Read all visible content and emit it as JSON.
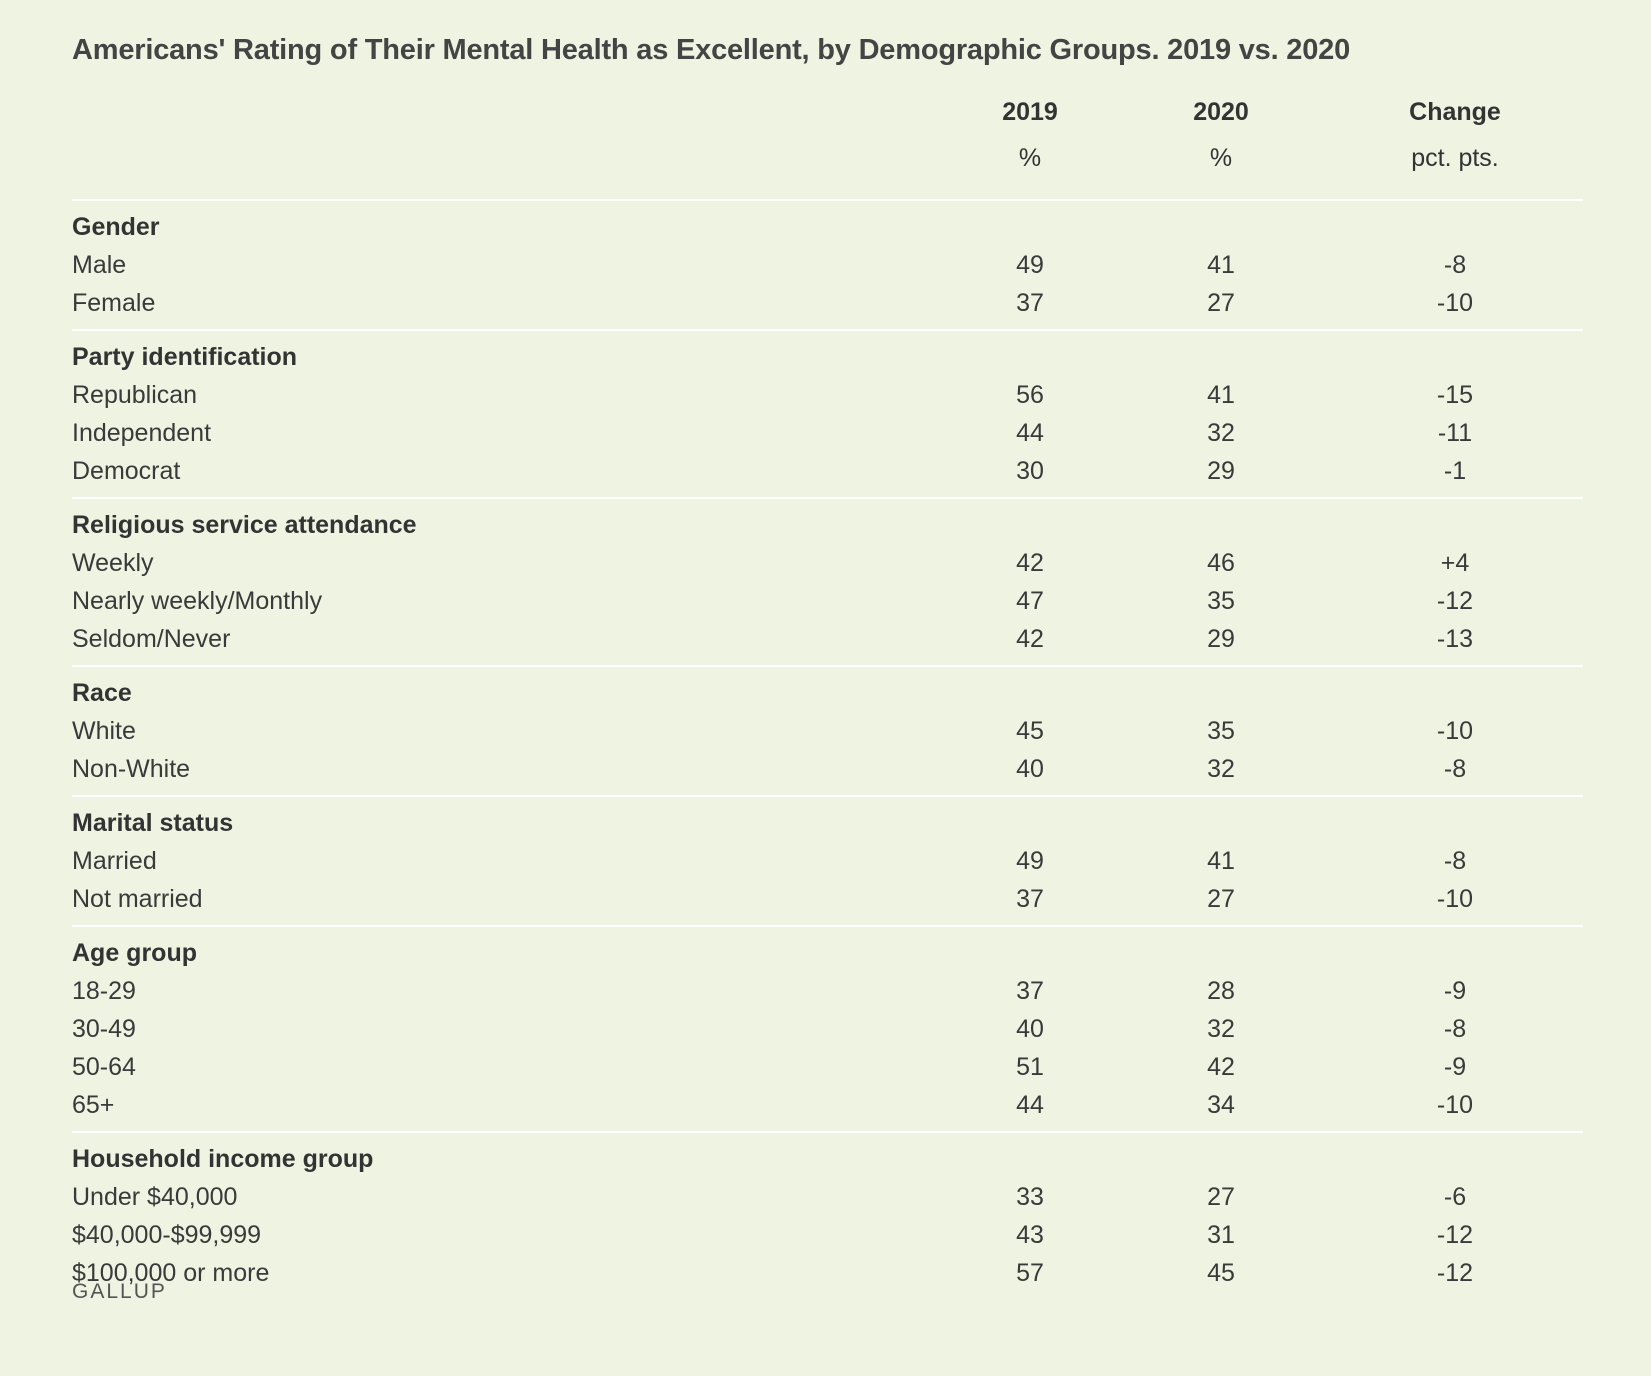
{
  "chart_data": {
    "type": "table",
    "title": "Americans' Rating of Their Mental Health as Excellent, by Demographic Groups. 2019 vs. 2020",
    "columns": [
      {
        "label": "2019",
        "unit": "%"
      },
      {
        "label": "2020",
        "unit": "%"
      },
      {
        "label": "Change",
        "unit": "pct. pts."
      }
    ],
    "groups": [
      {
        "name": "Gender",
        "rows": [
          {
            "label": "Male",
            "v2019": "49",
            "v2020": "41",
            "change": "-8"
          },
          {
            "label": "Female",
            "v2019": "37",
            "v2020": "27",
            "change": "-10"
          }
        ]
      },
      {
        "name": "Party identification",
        "rows": [
          {
            "label": "Republican",
            "v2019": "56",
            "v2020": "41",
            "change": "-15"
          },
          {
            "label": "Independent",
            "v2019": "44",
            "v2020": "32",
            "change": "-11"
          },
          {
            "label": "Democrat",
            "v2019": "30",
            "v2020": "29",
            "change": "-1"
          }
        ]
      },
      {
        "name": "Religious service attendance",
        "rows": [
          {
            "label": "Weekly",
            "v2019": "42",
            "v2020": "46",
            "change": "+4"
          },
          {
            "label": "Nearly weekly/Monthly",
            "v2019": "47",
            "v2020": "35",
            "change": "-12"
          },
          {
            "label": "Seldom/Never",
            "v2019": "42",
            "v2020": "29",
            "change": "-13"
          }
        ]
      },
      {
        "name": "Race",
        "rows": [
          {
            "label": "White",
            "v2019": "45",
            "v2020": "35",
            "change": "-10"
          },
          {
            "label": "Non-White",
            "v2019": "40",
            "v2020": "32",
            "change": "-8"
          }
        ]
      },
      {
        "name": "Marital status",
        "rows": [
          {
            "label": "Married",
            "v2019": "49",
            "v2020": "41",
            "change": "-8"
          },
          {
            "label": "Not married",
            "v2019": "37",
            "v2020": "27",
            "change": "-10"
          }
        ]
      },
      {
        "name": "Age group",
        "rows": [
          {
            "label": "18-29",
            "v2019": "37",
            "v2020": "28",
            "change": "-9"
          },
          {
            "label": "30-49",
            "v2019": "40",
            "v2020": "32",
            "change": "-8"
          },
          {
            "label": "50-64",
            "v2019": "51",
            "v2020": "42",
            "change": "-9"
          },
          {
            "label": "65+",
            "v2019": "44",
            "v2020": "34",
            "change": "-10"
          }
        ]
      },
      {
        "name": "Household income group",
        "rows": [
          {
            "label": "Under $40,000",
            "v2019": "33",
            "v2020": "27",
            "change": "-6"
          },
          {
            "label": "$40,000-$99,999",
            "v2019": "43",
            "v2020": "31",
            "change": "-12"
          },
          {
            "label": "$100,000 or more",
            "v2019": "57",
            "v2020": "45",
            "change": "-12"
          }
        ]
      }
    ],
    "source": "GALLUP"
  },
  "colors": {
    "background": "#eef3e2",
    "rule": "#ffffff",
    "text": "#3a3a3a"
  }
}
